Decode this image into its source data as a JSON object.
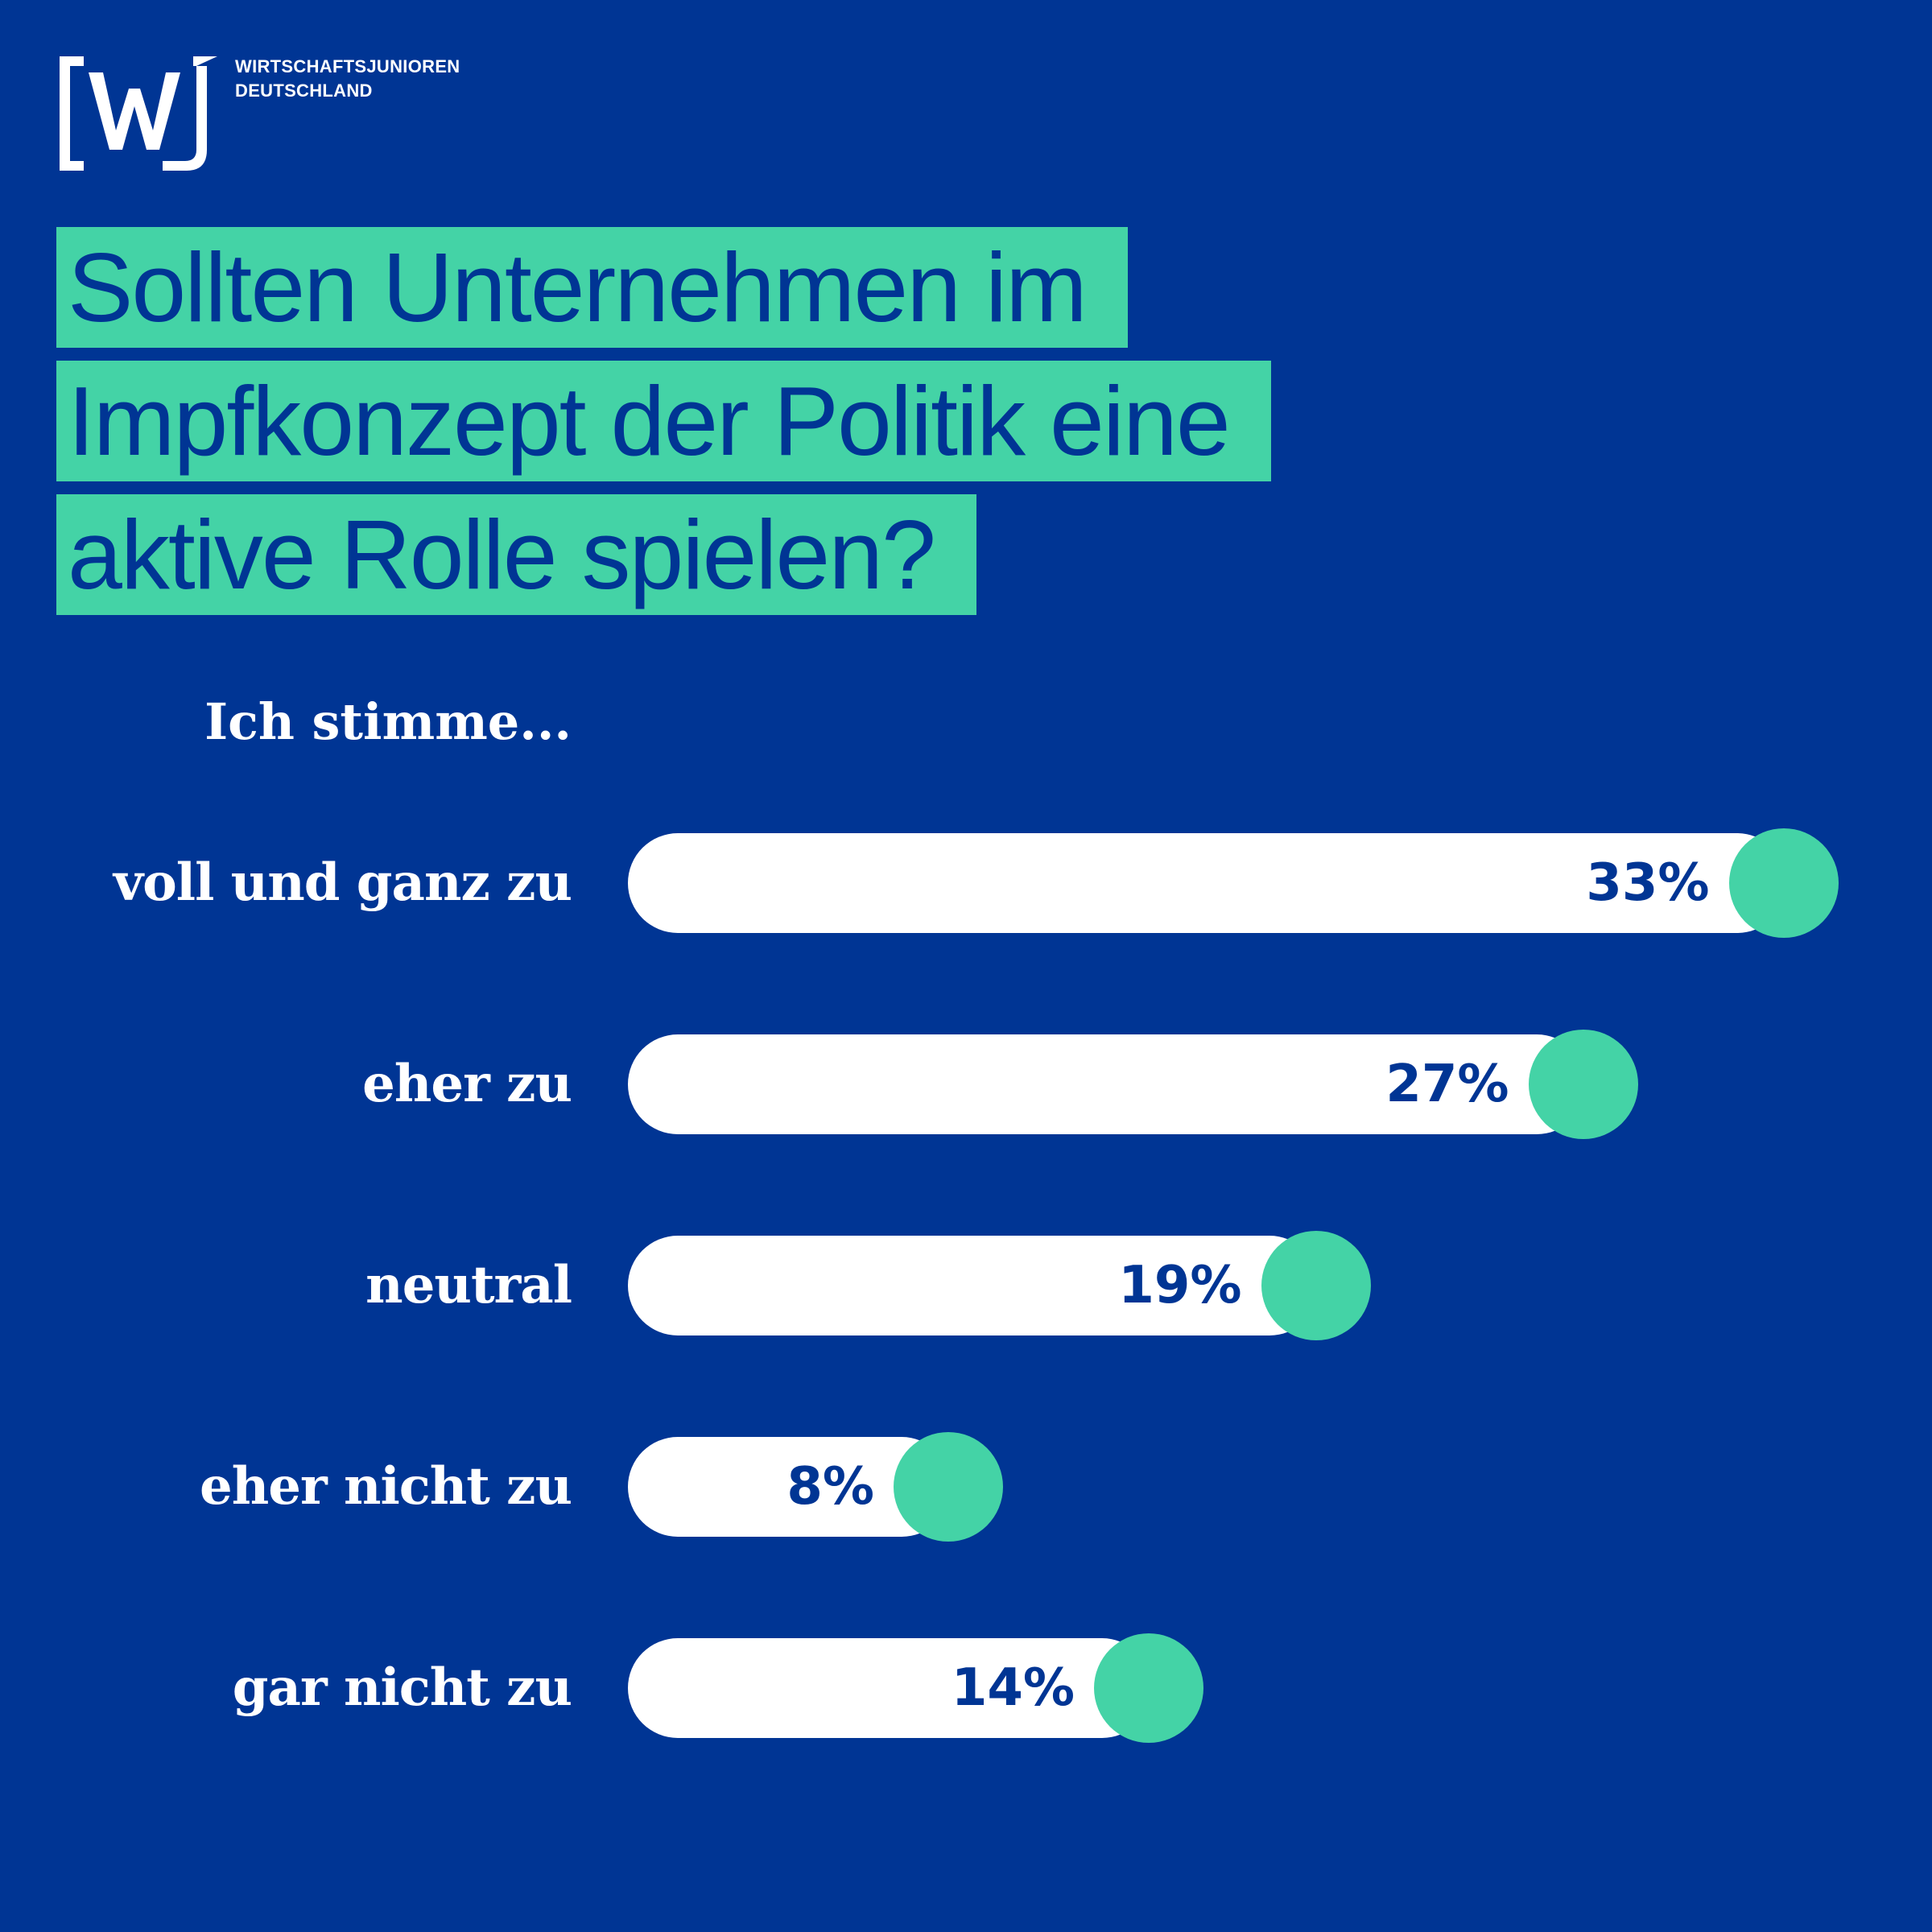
{
  "brand": {
    "line1": "WIRTSCHAFTSJUNIOREN",
    "line2": "DEUTSCHLAND",
    "mark": "[wj]"
  },
  "colors": {
    "background": "#003594",
    "accent": "#44d3a6",
    "bar": "#ffffff",
    "text": "#ffffff"
  },
  "chart_data": {
    "type": "bar",
    "title_lines": [
      "Sollten Unternehmen im",
      "Impfkonzept der Politik eine",
      "aktive Rolle spielen?"
    ],
    "subtitle": "Ich stimme...",
    "categories": [
      "voll und ganz zu",
      "eher zu",
      "neutral",
      "eher nicht zu",
      "gar nicht zu"
    ],
    "values": [
      33,
      27,
      19,
      8,
      14
    ],
    "value_labels": [
      "33%",
      "27%",
      "19%",
      "8%",
      "14%"
    ],
    "orientation": "horizontal",
    "unit": "%",
    "grid": false
  }
}
